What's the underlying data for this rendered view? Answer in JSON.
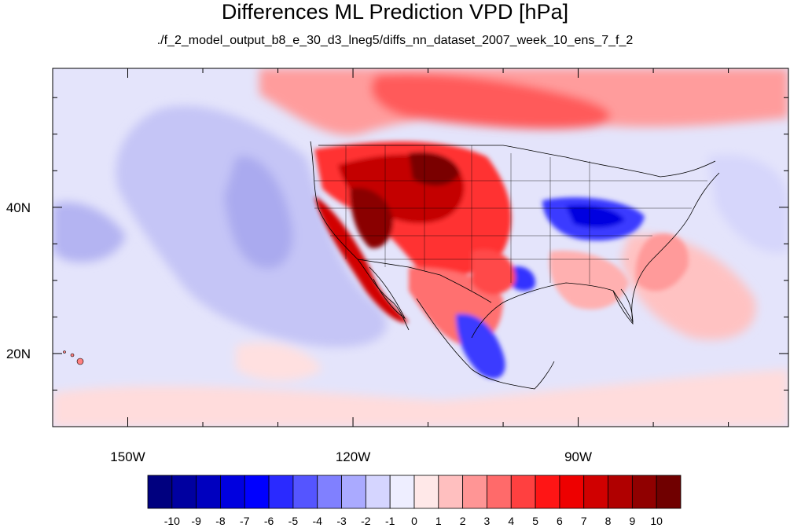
{
  "title": "Differences ML Prediction VPD [hPa]",
  "subtitle": "./f_2_model_output_b8_e_30_d3_lneg5/diffs_nn_dataset_2007_week_10_ens_7_f_2",
  "map": {
    "lon_range": [
      -160,
      -62
    ],
    "lat_range": [
      10,
      59
    ],
    "lon_ticks": [
      {
        "lon": -150,
        "label": "150W"
      },
      {
        "lon": -120,
        "label": "120W"
      },
      {
        "lon": -90,
        "label": "90W"
      }
    ],
    "lat_ticks": [
      {
        "lat": 40,
        "label": "40N"
      },
      {
        "lat": 20,
        "label": "20N"
      }
    ],
    "minor_lon": [
      -160,
      -140,
      -130,
      -110,
      -100,
      -80,
      -70
    ],
    "minor_lat": [
      15,
      25,
      30,
      35,
      45,
      50,
      55
    ]
  },
  "colorbar": {
    "colors": [
      "#00007f",
      "#0000a0",
      "#0000bf",
      "#0000df",
      "#0000ff",
      "#2a2aff",
      "#5555ff",
      "#8080ff",
      "#aaaaff",
      "#d5d5ff",
      "#eeeeff",
      "#ffe8e8",
      "#ffbfbf",
      "#ff9595",
      "#ff6a6a",
      "#ff4040",
      "#ff1515",
      "#ee0000",
      "#d00000",
      "#b00000",
      "#900000",
      "#700000"
    ],
    "labels": [
      "-10",
      "-9",
      "-8",
      "-7",
      "-6",
      "-5",
      "-4",
      "-3",
      "-2",
      "-1",
      "0",
      "1",
      "2",
      "3",
      "4",
      "5",
      "6",
      "7",
      "8",
      "9",
      "10"
    ]
  }
}
